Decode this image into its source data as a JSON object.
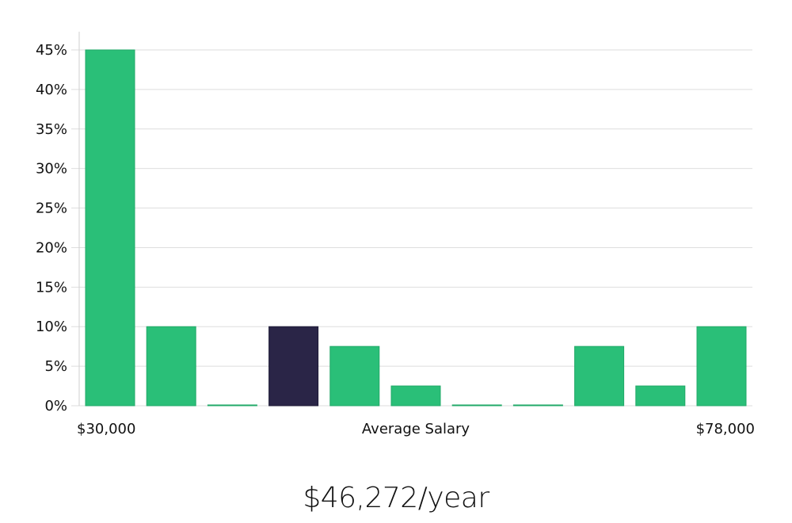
{
  "chart_data": {
    "type": "bar",
    "y_unit": "percent",
    "ylim": [
      0,
      45
    ],
    "y_ticks": [
      "0%",
      "5%",
      "10%",
      "15%",
      "20%",
      "25%",
      "30%",
      "35%",
      "40%",
      "45%"
    ],
    "y_tick_values": [
      0,
      5,
      10,
      15,
      20,
      25,
      30,
      35,
      40,
      45
    ],
    "x_min_label": "$30,000",
    "x_max_label": "$78,000",
    "xlabel": "Average Salary",
    "values": [
      45,
      10,
      0,
      10,
      7.5,
      2.5,
      0,
      0,
      7.5,
      2.5,
      10
    ],
    "highlight_index": 3,
    "grid": true,
    "colors": {
      "bar": "#2abf78",
      "bar_edge": "#22a968",
      "highlight": "#2a2547",
      "grid": "#dedede"
    }
  },
  "summary": {
    "salary_text": "$46,272/year"
  }
}
